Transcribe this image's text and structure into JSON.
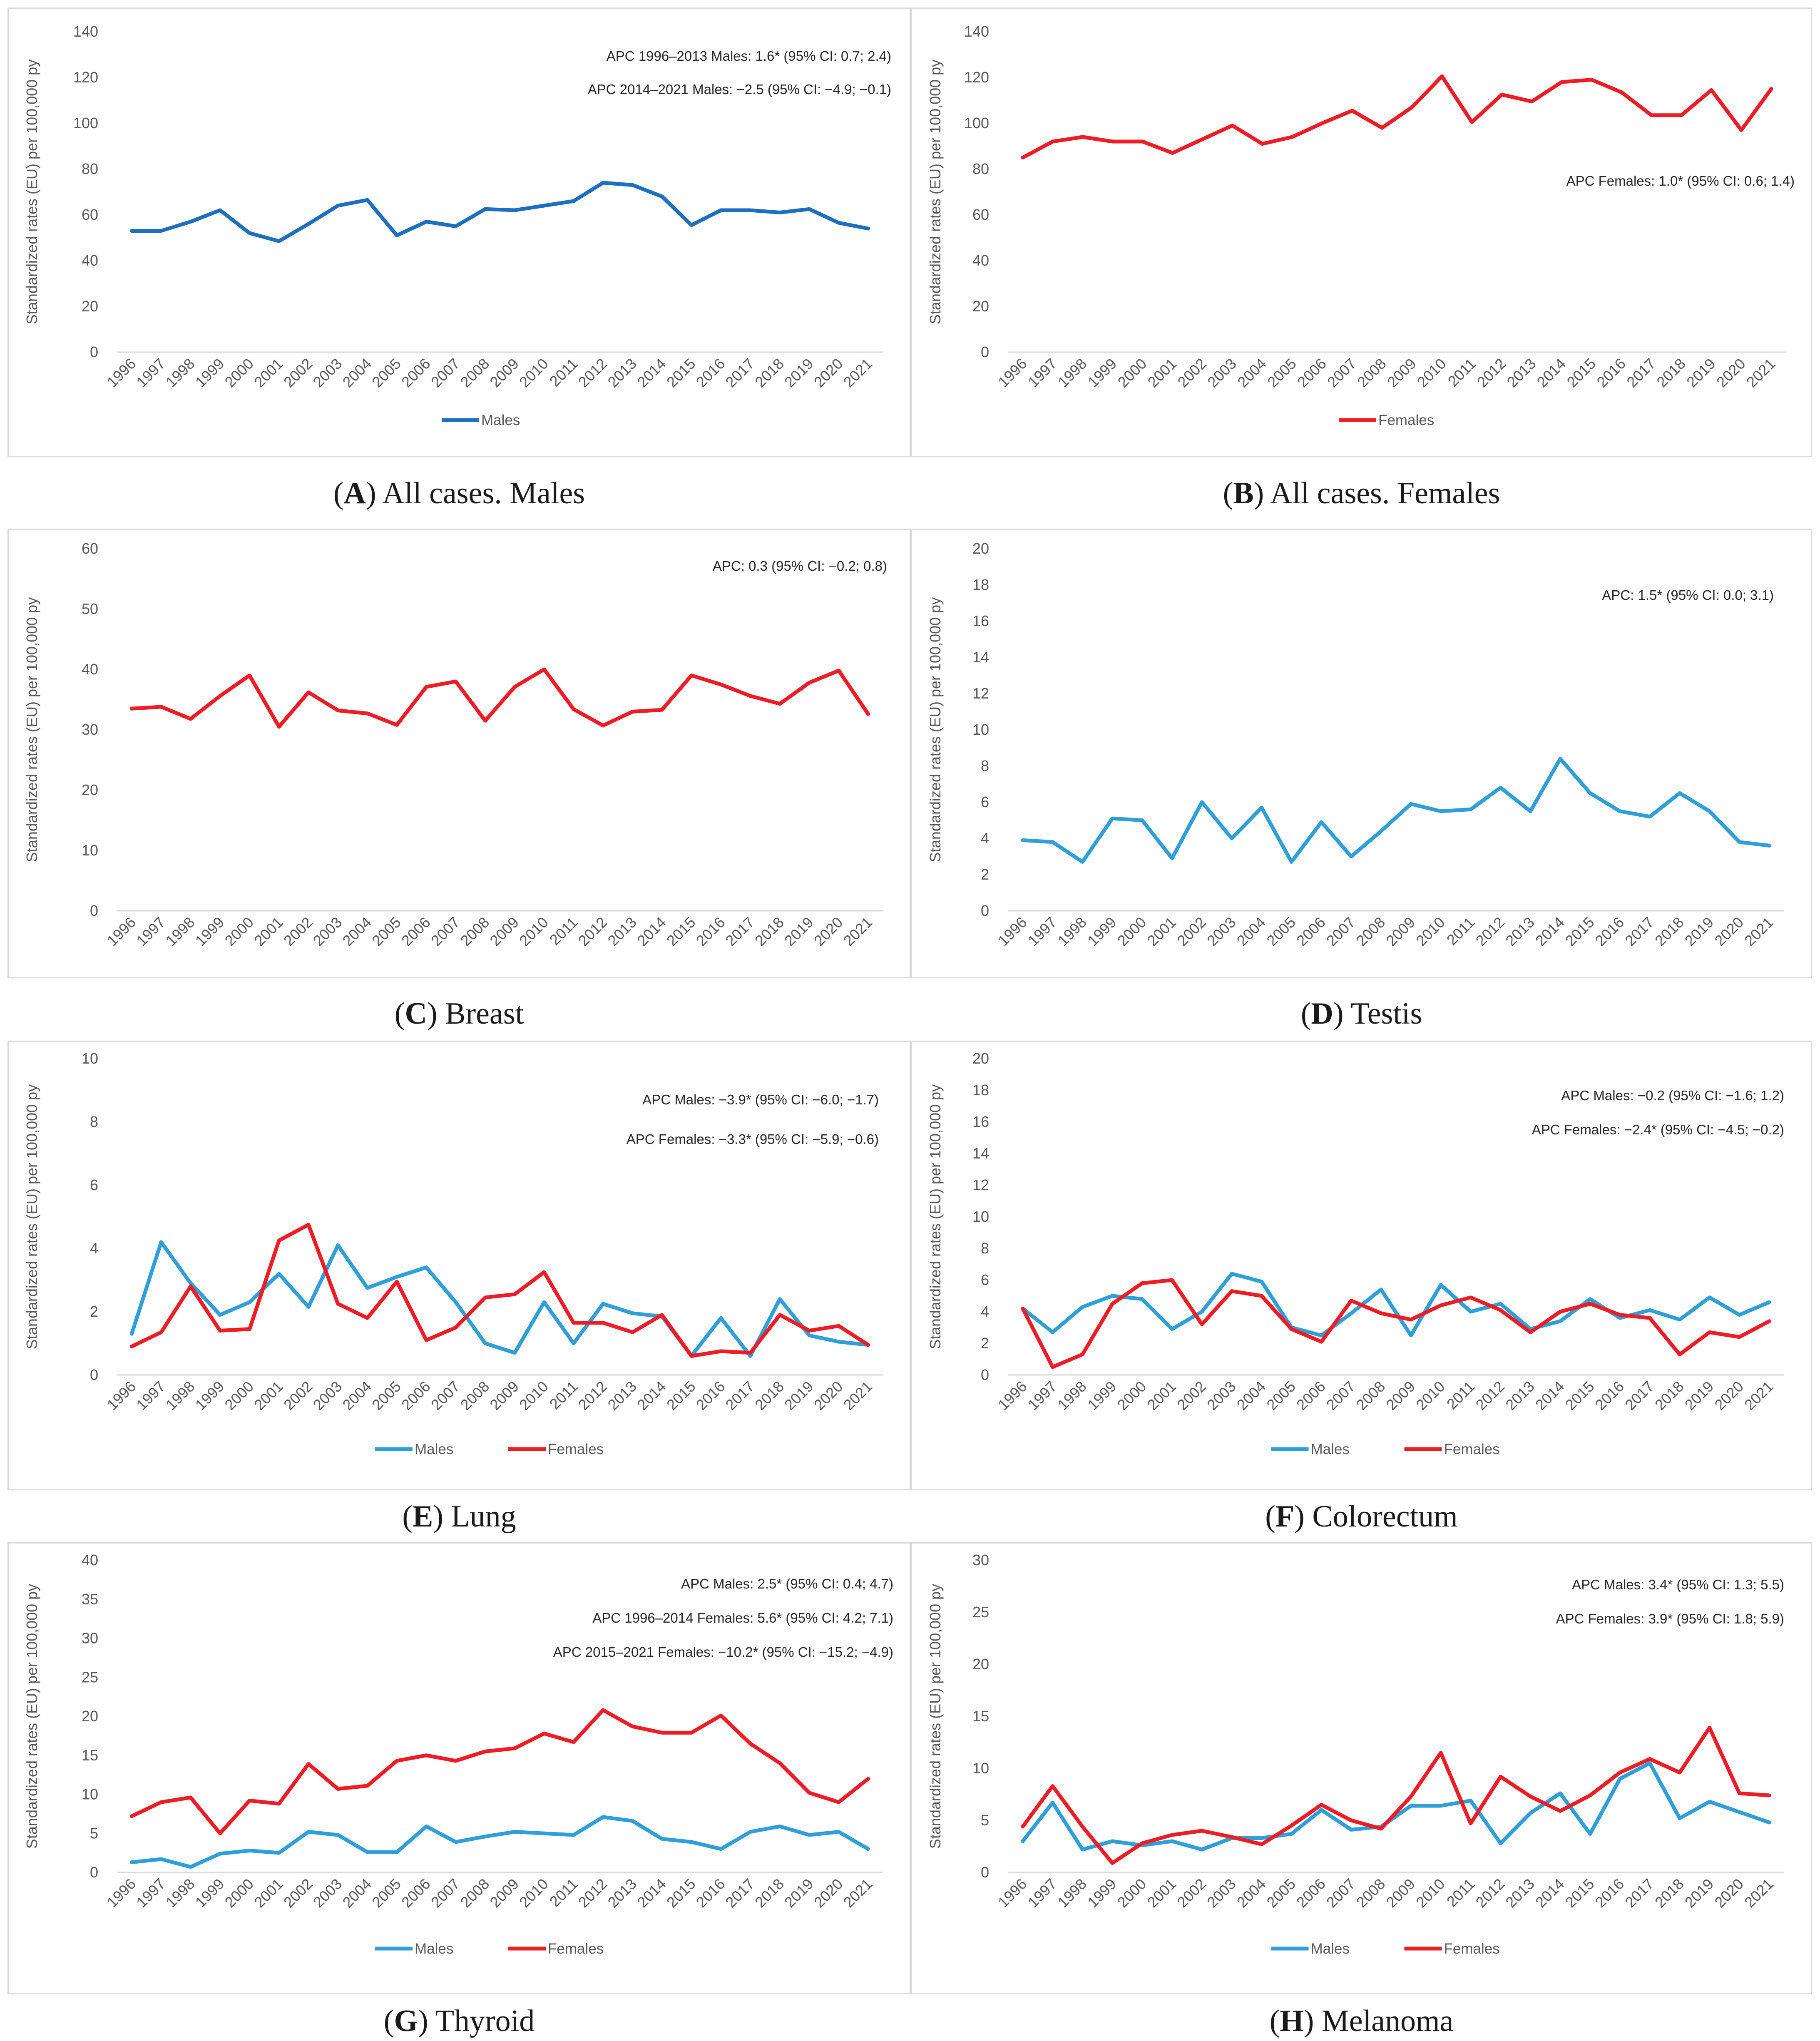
{
  "figure": {
    "ylabel": "Standardized rates (EU) per 100,000 py",
    "years": [
      "1996",
      "1997",
      "1998",
      "1999",
      "2000",
      "2001",
      "2002",
      "2003",
      "2004",
      "2005",
      "2006",
      "2007",
      "2008",
      "2009",
      "2010",
      "2011",
      "2012",
      "2013",
      "2014",
      "2015",
      "2016",
      "2017",
      "2018",
      "2019",
      "2020",
      "2021"
    ],
    "colors": {
      "males_dark": "#1f6fbf",
      "males": "#2e9fd8",
      "females": "#ee1c25",
      "border": "#d9d9d9"
    }
  },
  "chart_data": [
    {
      "id": "A",
      "type": "line",
      "letter": "A",
      "title": "All cases. Males",
      "xlabel": "",
      "ylabel": "Standardized rates (EU) per 100,000 py",
      "ylim": [
        0,
        140
      ],
      "yticks": [
        "0",
        "20",
        "40",
        "60",
        "80",
        "100",
        "120",
        "140"
      ],
      "x": [
        "1996",
        "1997",
        "1998",
        "1999",
        "2000",
        "2001",
        "2002",
        "2003",
        "2004",
        "2005",
        "2006",
        "2007",
        "2008",
        "2009",
        "2010",
        "2011",
        "2012",
        "2013",
        "2014",
        "2015",
        "2016",
        "2017",
        "2018",
        "2019",
        "2020",
        "2021"
      ],
      "series": [
        {
          "name": "Males",
          "color": "#1f6fbf",
          "values": [
            53,
            53,
            57,
            62,
            52,
            48.5,
            56,
            64,
            66.5,
            51,
            57,
            55,
            62.5,
            62,
            64,
            66,
            74,
            73,
            68,
            55.5,
            62,
            62,
            61,
            62.5,
            56.5,
            54
          ]
        }
      ],
      "annotations": [
        "APC 1996–2013 Males: 1.6* (95% CI: 0.7; 2.4)",
        "APC 2014–2021 Males: −2.5 (95% CI: −4.9; −0.1)"
      ],
      "legend": [
        "Males"
      ]
    },
    {
      "id": "B",
      "type": "line",
      "letter": "B",
      "title": "All cases. Females",
      "xlabel": "",
      "ylabel": "Standardized rates (EU) per 100,000 py",
      "ylim": [
        0,
        140
      ],
      "yticks": [
        "0",
        "20",
        "40",
        "60",
        "80",
        "100",
        "120",
        "140"
      ],
      "x": [
        "1996",
        "1997",
        "1998",
        "1999",
        "2000",
        "2001",
        "2002",
        "2003",
        "2004",
        "2005",
        "2006",
        "2007",
        "2008",
        "2009",
        "2010",
        "2011",
        "2012",
        "2013",
        "2014",
        "2015",
        "2016",
        "2017",
        "2018",
        "2019",
        "2020",
        "2021"
      ],
      "series": [
        {
          "name": "Females",
          "color": "#ee1c25",
          "values": [
            85,
            92,
            94,
            92,
            92,
            87,
            93,
            99,
            91,
            94,
            100,
            105.5,
            98,
            107,
            120.5,
            100.5,
            112.5,
            109.5,
            118,
            119,
            113.5,
            103.5,
            103.5,
            114.5,
            97,
            115
          ]
        }
      ],
      "annotations": [
        "APC Females: 1.0* (95% CI: 0.6; 1.4)"
      ],
      "legend": [
        "Females"
      ]
    },
    {
      "id": "C",
      "type": "line",
      "letter": "C",
      "title": "Breast",
      "xlabel": "",
      "ylabel": "Standardized rates (EU) per 100,000 py",
      "ylim": [
        0,
        60
      ],
      "yticks": [
        "0",
        "10",
        "20",
        "30",
        "40",
        "50",
        "60"
      ],
      "x": [
        "1996",
        "1997",
        "1998",
        "1999",
        "2000",
        "2001",
        "2002",
        "2003",
        "2004",
        "2005",
        "2006",
        "2007",
        "2008",
        "2009",
        "2010",
        "2011",
        "2012",
        "2013",
        "2014",
        "2015",
        "2016",
        "2017",
        "2018",
        "2019",
        "2020",
        "2021"
      ],
      "series": [
        {
          "name": "Females",
          "color": "#ee1c25",
          "values": [
            33.5,
            33.8,
            31.8,
            35.6,
            39,
            30.5,
            36.2,
            33.2,
            32.7,
            30.8,
            37.1,
            38,
            31.5,
            37.1,
            40,
            33.4,
            30.7,
            33,
            33.3,
            39,
            37.5,
            35.6,
            34.3,
            37.8,
            39.8,
            32.6
          ]
        }
      ],
      "annotations": [
        "APC: 0.3 (95% CI: −0.2; 0.8)"
      ],
      "legend": []
    },
    {
      "id": "D",
      "type": "line",
      "letter": "D",
      "title": "Testis",
      "xlabel": "",
      "ylabel": "Standardized rates (EU) per 100,000 py",
      "ylim": [
        0,
        20
      ],
      "yticks": [
        "0",
        "2",
        "4",
        "6",
        "8",
        "10",
        "12",
        "14",
        "16",
        "18",
        "20"
      ],
      "x": [
        "1996",
        "1997",
        "1998",
        "1999",
        "2000",
        "2001",
        "2002",
        "2003",
        "2004",
        "2005",
        "2006",
        "2007",
        "2008",
        "2009",
        "2010",
        "2011",
        "2012",
        "2013",
        "2014",
        "2015",
        "2016",
        "2017",
        "2018",
        "2019",
        "2020",
        "2021"
      ],
      "series": [
        {
          "name": "Males",
          "color": "#2e9fd8",
          "values": [
            3.9,
            3.8,
            2.7,
            5.1,
            5,
            2.9,
            6,
            4,
            5.7,
            2.7,
            4.9,
            3,
            4.4,
            5.9,
            5.5,
            5.6,
            6.8,
            5.5,
            8.4,
            6.5,
            5.5,
            5.2,
            6.5,
            5.5,
            3.8,
            3.6
          ]
        }
      ],
      "annotations": [
        "APC: 1.5* (95% CI: 0.0; 3.1)"
      ],
      "legend": []
    },
    {
      "id": "E",
      "type": "line",
      "letter": "E",
      "title": "Lung",
      "xlabel": "",
      "ylabel": "Standardized rates (EU) per 100,000 py",
      "ylim": [
        0,
        10
      ],
      "yticks": [
        "0",
        "2",
        "4",
        "6",
        "8",
        "10"
      ],
      "x": [
        "1996",
        "1997",
        "1998",
        "1999",
        "2000",
        "2001",
        "2002",
        "2003",
        "2004",
        "2005",
        "2006",
        "2007",
        "2008",
        "2009",
        "2010",
        "2011",
        "2012",
        "2013",
        "2014",
        "2015",
        "2016",
        "2017",
        "2018",
        "2019",
        "2020",
        "2021"
      ],
      "series": [
        {
          "name": "Males",
          "color": "#2e9fd8",
          "values": [
            1.3,
            4.2,
            2.9,
            1.9,
            2.3,
            3.2,
            2.15,
            4.1,
            2.75,
            3.1,
            3.4,
            2.3,
            1,
            0.7,
            2.3,
            1,
            2.25,
            1.95,
            1.85,
            0.6,
            1.8,
            0.6,
            2.4,
            1.25,
            1.05,
            0.95
          ]
        },
        {
          "name": "Females",
          "color": "#ee1c25",
          "values": [
            0.9,
            1.35,
            2.8,
            1.4,
            1.45,
            4.25,
            4.75,
            2.25,
            1.8,
            2.95,
            1.1,
            1.5,
            2.45,
            2.55,
            3.25,
            1.65,
            1.65,
            1.35,
            1.9,
            0.6,
            0.75,
            0.7,
            1.9,
            1.4,
            1.55,
            0.95
          ]
        }
      ],
      "annotations": [
        "APC Males: −3.9* (95% CI: −6.0; −1.7)",
        "APC Females: −3.3* (95% CI: −5.9; −0.6)"
      ],
      "legend": [
        "Males",
        "Females"
      ]
    },
    {
      "id": "F",
      "type": "line",
      "letter": "F",
      "title": "Colorectum",
      "xlabel": "",
      "ylabel": "Standardized rates (EU) per 100,000 py",
      "ylim": [
        0,
        20
      ],
      "yticks": [
        "0",
        "2",
        "4",
        "6",
        "8",
        "10",
        "12",
        "14",
        "16",
        "18",
        "20"
      ],
      "x": [
        "1996",
        "1997",
        "1998",
        "1999",
        "2000",
        "2001",
        "2002",
        "2003",
        "2004",
        "2005",
        "2006",
        "2007",
        "2008",
        "2009",
        "2010",
        "2011",
        "2012",
        "2013",
        "2014",
        "2015",
        "2016",
        "2017",
        "2018",
        "2019",
        "2020",
        "2021"
      ],
      "series": [
        {
          "name": "Males",
          "color": "#2e9fd8",
          "values": [
            4.2,
            2.7,
            4.3,
            5,
            4.8,
            2.9,
            4,
            6.4,
            5.9,
            3,
            2.5,
            3.9,
            5.4,
            2.5,
            5.7,
            4,
            4.5,
            2.9,
            3.4,
            4.8,
            3.6,
            4.1,
            3.5,
            4.9,
            3.8,
            4.6
          ]
        },
        {
          "name": "Females",
          "color": "#ee1c25",
          "values": [
            4.2,
            0.5,
            1.3,
            4.5,
            5.8,
            6,
            3.2,
            5.3,
            5,
            2.9,
            2.1,
            4.7,
            3.9,
            3.5,
            4.4,
            4.9,
            4.1,
            2.7,
            4,
            4.5,
            3.8,
            3.6,
            1.3,
            2.7,
            2.4,
            3.4
          ]
        }
      ],
      "annotations": [
        "APC Males: −0.2 (95% CI: −1.6; 1.2)",
        "APC Females: −2.4* (95% CI: −4.5; −0.2)"
      ],
      "legend": [
        "Males",
        "Females"
      ]
    },
    {
      "id": "G",
      "type": "line",
      "letter": "G",
      "title": "Thyroid",
      "xlabel": "",
      "ylabel": "Standardized rates (EU) per 100,000 py",
      "ylim": [
        0,
        40
      ],
      "yticks": [
        "0",
        "5",
        "10",
        "15",
        "20",
        "25",
        "30",
        "35",
        "40"
      ],
      "x": [
        "1996",
        "1997",
        "1998",
        "1999",
        "2000",
        "2001",
        "2002",
        "2003",
        "2004",
        "2005",
        "2006",
        "2007",
        "2008",
        "2009",
        "2010",
        "2011",
        "2012",
        "2013",
        "2014",
        "2015",
        "2016",
        "2017",
        "2018",
        "2019",
        "2020",
        "2021"
      ],
      "series": [
        {
          "name": "Males",
          "color": "#2e9fd8",
          "values": [
            1.3,
            1.7,
            0.7,
            2.4,
            2.8,
            2.5,
            5.2,
            4.8,
            2.6,
            2.6,
            5.9,
            3.9,
            4.6,
            5.2,
            5,
            4.8,
            7.1,
            6.6,
            4.3,
            3.9,
            3,
            5.2,
            5.9,
            4.8,
            5.2,
            3
          ]
        },
        {
          "name": "Females",
          "color": "#ee1c25",
          "values": [
            7.2,
            9,
            9.6,
            5,
            9.2,
            8.8,
            13.9,
            10.7,
            11.1,
            14.3,
            15,
            14.3,
            15.5,
            15.9,
            17.8,
            16.7,
            20.8,
            18.7,
            17.9,
            17.9,
            20.1,
            16.5,
            14,
            10.2,
            9,
            12
          ]
        }
      ],
      "annotations": [
        "APC Males: 2.5* (95% CI: 0.4; 4.7)",
        "APC 1996–2014 Females: 5.6* (95% CI: 4.2; 7.1)",
        "APC 2015–2021 Females: −10.2* (95% CI: −15.2; −4.9)"
      ],
      "legend": [
        "Males",
        "Females"
      ]
    },
    {
      "id": "H",
      "type": "line",
      "letter": "H",
      "title": "Melanoma",
      "xlabel": "",
      "ylabel": "Standardized rates (EU) per 100,000 py",
      "ylim": [
        0,
        30
      ],
      "yticks": [
        "0",
        "5",
        "10",
        "15",
        "20",
        "25",
        "30"
      ],
      "x": [
        "1996",
        "1997",
        "1998",
        "1999",
        "2000",
        "2001",
        "2002",
        "2003",
        "2004",
        "2005",
        "2006",
        "2007",
        "2008",
        "2009",
        "2010",
        "2011",
        "2012",
        "2013",
        "2014",
        "2015",
        "2016",
        "2017",
        "2018",
        "2019",
        "2020",
        "2021"
      ],
      "series": [
        {
          "name": "Males",
          "color": "#2e9fd8",
          "values": [
            3,
            6.7,
            2.2,
            3,
            2.6,
            3,
            2.2,
            3.3,
            3.3,
            3.7,
            6,
            4.1,
            4.4,
            6.4,
            6.4,
            6.9,
            2.8,
            5.7,
            7.6,
            3.7,
            9,
            10.5,
            5.2,
            6.8,
            5.8,
            4.8
          ]
        },
        {
          "name": "Females",
          "color": "#ee1c25",
          "values": [
            4.4,
            8.3,
            4.4,
            0.9,
            2.8,
            3.6,
            4,
            3.4,
            2.7,
            4.5,
            6.5,
            5,
            4.2,
            7.3,
            11.5,
            4.7,
            9.2,
            7.3,
            5.9,
            7.4,
            9.6,
            10.9,
            9.6,
            13.9,
            7.6,
            7.4
          ]
        }
      ],
      "annotations": [
        "APC Males: 3.4* (95% CI: 1.3; 5.5)",
        "APC Females: 3.9* (95% CI: 1.8; 5.9)"
      ],
      "legend": [
        "Males",
        "Females"
      ]
    }
  ]
}
